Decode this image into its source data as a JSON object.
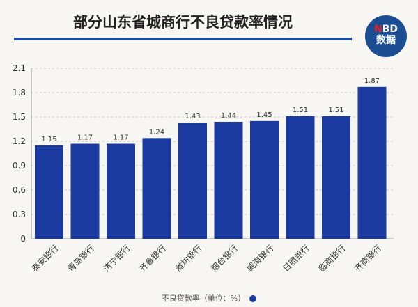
{
  "chart_data": {
    "type": "bar",
    "title": "部分山东省城商行不良贷款率情况",
    "categories": [
      "泰安银行",
      "青岛银行",
      "济宁银行",
      "齐鲁银行",
      "潍坊银行",
      "烟台银行",
      "威海银行",
      "日照银行",
      "临商银行",
      "齐商银行"
    ],
    "values": [
      1.15,
      1.17,
      1.17,
      1.24,
      1.43,
      1.44,
      1.45,
      1.51,
      1.51,
      1.87
    ],
    "value_labels": [
      "1.15",
      "1.17",
      "1.17",
      "1.24",
      "1.43",
      "1.44",
      "1.45",
      "1.51",
      "1.51",
      "1.87"
    ],
    "yticks": [
      "0",
      "0.3",
      "0.6",
      "0.9",
      "1.2",
      "1.5",
      "1.8",
      "2.1"
    ],
    "ylim": [
      0,
      2.1
    ],
    "legend": "不良贷款率（单位：%）",
    "legend_position": "bottom",
    "grid": true,
    "bar_color": "#1a3aa0"
  },
  "logo": {
    "line1_n": "N",
    "line1_rest": "BD",
    "line2": "数据"
  }
}
